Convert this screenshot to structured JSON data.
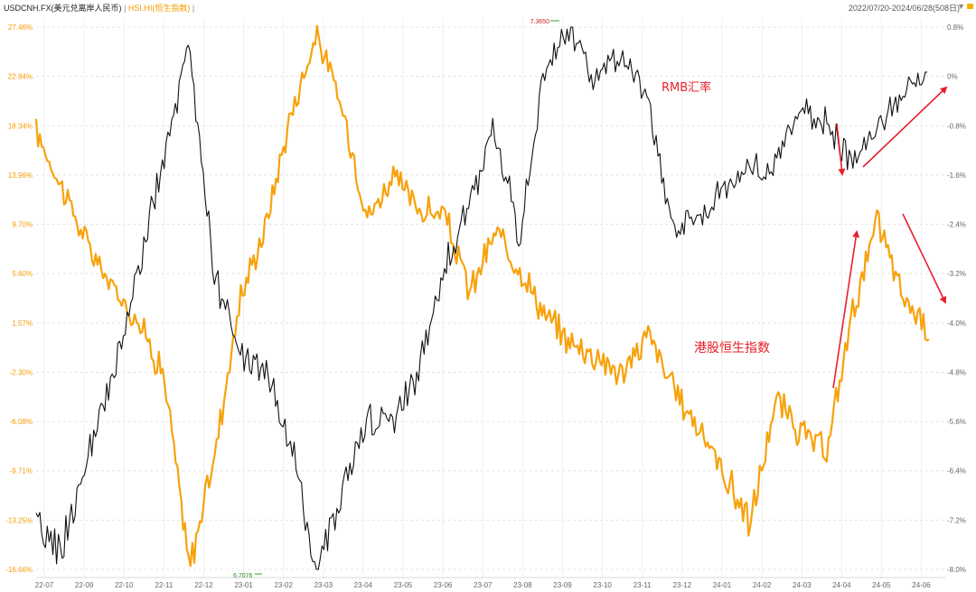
{
  "header": {
    "symbol_label": "USDCNH.FX(美元兑离岸人民币)",
    "separator": "|",
    "hsi_label": "HSI.HI(恒生指数)",
    "date_range": "2022/07/20-2024/06/28(508日)",
    "menu_icon": "chevron-down-icon",
    "lock_icon": "lock-icon"
  },
  "colors": {
    "usdcnh": "#111111",
    "hsi": "#f7a20c",
    "annotation": "#e8202a",
    "left_axis_text": "#f59a00",
    "grid": "#e4e4e4"
  },
  "chart_data": {
    "type": "line",
    "x_tick_labels": [
      "22-07",
      "22-09",
      "22-10",
      "22-11",
      "22-12",
      "23-01",
      "23-02",
      "23-03",
      "23-04",
      "23-05",
      "23-06",
      "23-07",
      "23-08",
      "23-09",
      "23-10",
      "23-11",
      "23-12",
      "24-01",
      "24-02",
      "24-03",
      "24-04",
      "24-05",
      "24-06"
    ],
    "left_axis": {
      "ticks": [
        "27.46%",
        "22.84%",
        "18.34%",
        "13.96%",
        "9.70%",
        "5.60%",
        "1.57%",
        "-2.30%",
        "-6.08%",
        "-9.71%",
        "-13.25%",
        "-16.66%"
      ],
      "ylim": [
        -16.66,
        27.46
      ],
      "scale": "log"
    },
    "right_axis": {
      "ticks": [
        "0.8%",
        "0%",
        "-0.8%",
        "-1.6%",
        "-2.4%",
        "-3.2%",
        "-4.0%",
        "-4.8%",
        "-5.6%",
        "-6.4%",
        "-7.2%",
        "-8.0%"
      ],
      "ylim": [
        -8.0,
        0.8
      ]
    },
    "series": [
      {
        "name": "USDCNH.FX(美元兑离岸人民币)",
        "color": "#111111",
        "points": [
          [
            "22-07",
            -13.8
          ],
          [
            "22-08",
            -15.2
          ],
          [
            "22-09",
            -9.2
          ],
          [
            "22-09b",
            -3.0
          ],
          [
            "22-10",
            5.6
          ],
          [
            "22-10b",
            15.2
          ],
          [
            "22-11",
            25.2
          ],
          [
            "22-11b",
            5.6
          ],
          [
            "22-12",
            -1.2
          ],
          [
            "22-12b",
            -2.0
          ],
          [
            "23-01",
            -8.0
          ],
          [
            "23-01b",
            -16.66
          ],
          [
            "23-02",
            -11.2
          ],
          [
            "23-03",
            -6.0
          ],
          [
            "23-04",
            -6.3
          ],
          [
            "23-05",
            -2.0
          ],
          [
            "23-05b",
            6.0
          ],
          [
            "23-06",
            11.0
          ],
          [
            "23-07",
            18.2
          ],
          [
            "23-07b",
            8.6
          ],
          [
            "23-08",
            23.8
          ],
          [
            "23-09",
            27.0
          ],
          [
            "23-09b",
            22.4
          ],
          [
            "23-10",
            25.2
          ],
          [
            "23-11",
            20.8
          ],
          [
            "23-11b",
            9.5
          ],
          [
            "23-12",
            10.5
          ],
          [
            "24-01",
            12.4
          ],
          [
            "24-02",
            14.8
          ],
          [
            "24-03",
            14.6
          ],
          [
            "24-03b",
            19.6
          ],
          [
            "24-04",
            18.8
          ],
          [
            "24-05",
            15.0
          ],
          [
            "24-05b",
            18.6
          ],
          [
            "24-06",
            21.2
          ],
          [
            "24-06b",
            22.6
          ]
        ],
        "max_label": "7.3650",
        "min_label": "6.7076"
      },
      {
        "name": "HSI.HI(恒生指数)",
        "color": "#f7a20c",
        "points": [
          [
            "22-07",
            17.8
          ],
          [
            "22-08",
            13.0
          ],
          [
            "22-09",
            8.0
          ],
          [
            "22-09b",
            4.4
          ],
          [
            "22-10",
            1.8
          ],
          [
            "22-10b",
            -2.5
          ],
          [
            "22-11",
            -16.66
          ],
          [
            "22-11b",
            -8.5
          ],
          [
            "22-12",
            3.5
          ],
          [
            "22-12b",
            9.6
          ],
          [
            "23-01",
            19.5
          ],
          [
            "23-01b",
            26.8
          ],
          [
            "23-02",
            19.8
          ],
          [
            "23-03",
            10.3
          ],
          [
            "23-04",
            13.9
          ],
          [
            "23-05",
            11.0
          ],
          [
            "23-05b",
            10.5
          ],
          [
            "23-06",
            4.0
          ],
          [
            "23-07",
            9.0
          ],
          [
            "23-07b",
            6.0
          ],
          [
            "23-08",
            2.0
          ],
          [
            "23-09",
            0.0
          ],
          [
            "23-09b",
            -1.0
          ],
          [
            "23-10",
            -2.5
          ],
          [
            "23-11",
            0.8
          ],
          [
            "23-11b",
            -3.8
          ],
          [
            "23-12",
            -6.5
          ],
          [
            "24-01",
            -10.0
          ],
          [
            "24-02",
            -13.5
          ],
          [
            "24-03",
            -4.5
          ],
          [
            "24-03b",
            -7.0
          ],
          [
            "24-04",
            -8.5
          ],
          [
            "24-05",
            2.5
          ],
          [
            "24-05b",
            10.0
          ],
          [
            "24-06",
            3.5
          ],
          [
            "24-06b",
            1.2
          ]
        ]
      }
    ],
    "annotations": [
      {
        "text": "RMB汇率",
        "color": "#e8202a"
      },
      {
        "text": "港股恒生指数",
        "color": "#e8202a"
      }
    ],
    "grid": true
  }
}
